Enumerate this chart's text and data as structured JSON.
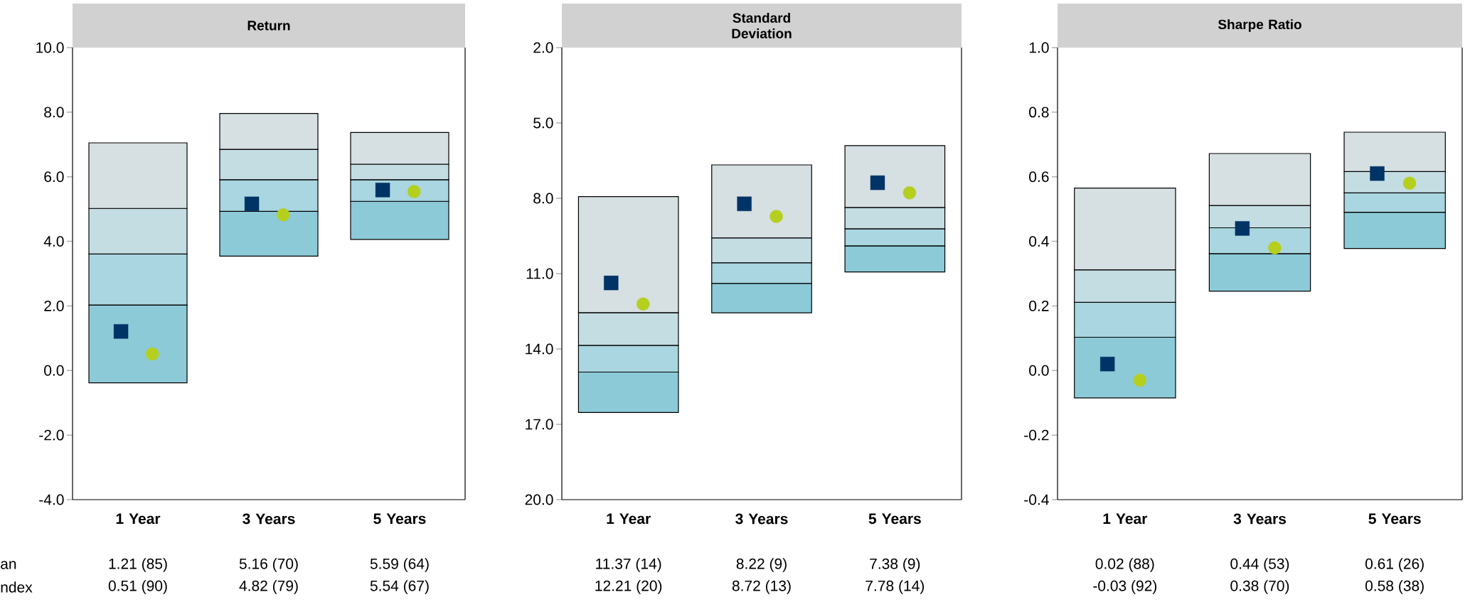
{
  "chart_data": [
    {
      "type": "bar",
      "title": "Return",
      "categories": [
        "1 Year",
        "3 Years",
        "5 Years"
      ],
      "annotations": [
        "an",
        "ndex"
      ],
      "series": [
        {
          "color": "#8ccad8",
          "base": [
            -0.38,
            3.54,
            4.06
          ],
          "values": [
            2.41,
            1.39,
            1.18
          ]
        },
        {
          "color": "#a9d6e0",
          "base": [
            2.03,
            4.93,
            5.24
          ],
          "values": [
            1.58,
            0.98,
            0.67
          ]
        },
        {
          "color": "#c4dde3",
          "base": [
            3.61,
            5.91,
            5.91
          ],
          "values": [
            1.41,
            0.94,
            0.48
          ]
        },
        {
          "color": "#d6dfe2",
          "base": [
            5.02,
            6.85,
            6.39
          ],
          "values": [
            2.03,
            1.11,
            0.98
          ]
        },
        {
          "type": "scatter",
          "marker": "square",
          "color": "#003366",
          "values": [
            1.21,
            5.16,
            5.59
          ],
          "value_labels": [
            "1.21 (85)",
            "5.16 (70)",
            "5.59 (64)"
          ]
        },
        {
          "type": "scatter",
          "marker": "circle",
          "color": "#b5cf1e",
          "values": [
            0.51,
            4.82,
            5.54
          ],
          "value_labels": [
            "0.51 (90)",
            "4.82 (79)",
            "5.54 (67)"
          ]
        }
      ],
      "ylim": [
        -4,
        10
      ],
      "yticks": [
        {
          "value": -4,
          "label": "-4.0"
        },
        {
          "value": -2,
          "label": "-2.0"
        },
        {
          "value": 0,
          "label": "0.0"
        },
        {
          "value": 2,
          "label": "2.0"
        },
        {
          "value": 4,
          "label": "4.0"
        },
        {
          "value": 6,
          "label": "6.0"
        },
        {
          "value": 8,
          "label": "8.0"
        },
        {
          "value": 10,
          "label": "10.0"
        }
      ]
    },
    {
      "type": "bar",
      "title": "Standard Deviation",
      "categories": [
        "1 Year",
        "3 Years",
        "5 Years"
      ],
      "series": [
        {
          "color": "#d6dfe2",
          "base": [
            7.93,
            6.67,
            5.9
          ],
          "values": [
            4.63,
            2.91,
            2.47
          ]
        },
        {
          "color": "#c4dde3",
          "base": [
            12.56,
            9.58,
            8.37
          ],
          "values": [
            1.3,
            0.99,
            0.85
          ]
        },
        {
          "color": "#a9d6e0",
          "base": [
            13.86,
            10.57,
            9.22
          ],
          "values": [
            1.06,
            0.82,
            0.68
          ]
        },
        {
          "color": "#8ccad8",
          "base": [
            14.92,
            11.39,
            9.9
          ],
          "values": [
            1.61,
            1.17,
            1.03
          ]
        },
        {
          "type": "scatter",
          "marker": "square",
          "color": "#003366",
          "values": [
            11.37,
            8.22,
            7.38
          ],
          "value_labels": [
            "11.37 (14)",
            "8.22 (9)",
            "7.38 (9)"
          ]
        },
        {
          "type": "scatter",
          "marker": "circle",
          "color": "#b5cf1e",
          "values": [
            12.21,
            8.72,
            7.78
          ],
          "value_labels": [
            "12.21 (20)",
            "8.72 (13)",
            "7.78 (14)"
          ]
        }
      ],
      "ylim": [
        20,
        2
      ],
      "yticks": [
        {
          "value": 2,
          "label": "2.0"
        },
        {
          "value": 5,
          "label": "5.0"
        },
        {
          "value": 8,
          "label": "8.0"
        },
        {
          "value": 11,
          "label": "11.0"
        },
        {
          "value": 14,
          "label": "14.0"
        },
        {
          "value": 17,
          "label": "17.0"
        },
        {
          "value": 20,
          "label": "20.0"
        }
      ]
    },
    {
      "type": "bar",
      "title": "Sharpe Ratio",
      "categories": [
        "1 Year",
        "3 Years",
        "5 Years"
      ],
      "series": [
        {
          "color": "#8ccad8",
          "base": [
            -0.085,
            0.246,
            0.378
          ],
          "values": [
            0.188,
            0.116,
            0.112
          ]
        },
        {
          "color": "#a9d6e0",
          "base": [
            0.103,
            0.362,
            0.49
          ],
          "values": [
            0.108,
            0.08,
            0.06
          ]
        },
        {
          "color": "#c4dde3",
          "base": [
            0.211,
            0.442,
            0.55
          ],
          "values": [
            0.101,
            0.069,
            0.066
          ]
        },
        {
          "color": "#d6dfe2",
          "base": [
            0.312,
            0.511,
            0.616
          ],
          "values": [
            0.253,
            0.161,
            0.122
          ]
        },
        {
          "type": "scatter",
          "marker": "square",
          "color": "#003366",
          "values": [
            0.02,
            0.44,
            0.61
          ],
          "value_labels": [
            "0.02 (88)",
            "0.44 (53)",
            "0.61 (26)"
          ]
        },
        {
          "type": "scatter",
          "marker": "circle",
          "color": "#b5cf1e",
          "values": [
            -0.03,
            0.38,
            0.58
          ],
          "value_labels": [
            "-0.03 (92)",
            "0.38 (70)",
            "0.58 (38)"
          ]
        }
      ],
      "ylim": [
        -0.4,
        1.0
      ],
      "yticks": [
        {
          "value": -0.4,
          "label": "-0.4"
        },
        {
          "value": -0.2,
          "label": "-0.2"
        },
        {
          "value": 0,
          "label": "0.0"
        },
        {
          "value": 0.2,
          "label": "0.2"
        },
        {
          "value": 0.4,
          "label": "0.4"
        },
        {
          "value": 0.6,
          "label": "0.6"
        },
        {
          "value": 0.8,
          "label": "0.8"
        },
        {
          "value": 1.0,
          "label": "1.0"
        }
      ]
    }
  ]
}
